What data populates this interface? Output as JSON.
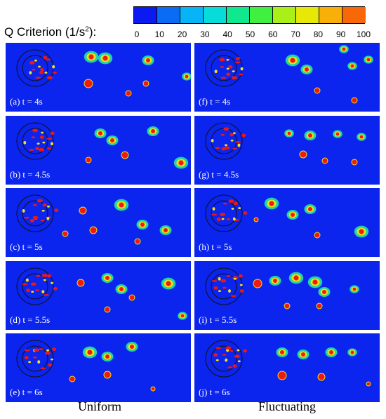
{
  "colorbar": {
    "title_prefix": "Q Criterion (1/s",
    "title_sup": "2",
    "title_suffix": "):",
    "ticks": [
      "0",
      "10",
      "20",
      "30",
      "40",
      "50",
      "60",
      "70",
      "80",
      "90",
      "100"
    ],
    "colors": [
      "#0a1af0",
      "#0a6cf5",
      "#08b4f8",
      "#06dcd8",
      "#10e890",
      "#40f040",
      "#a8f018",
      "#e8e808",
      "#f8b008",
      "#f86808"
    ]
  },
  "panels": [
    {
      "label": "(a) t = 4s"
    },
    {
      "label": "(f) t = 4s"
    },
    {
      "label": "(b) t = 4.5s"
    },
    {
      "label": "(g) t = 4.5s"
    },
    {
      "label": "(c) t = 5s"
    },
    {
      "label": "(h) t = 5s"
    },
    {
      "label": "(d) t = 5.5s"
    },
    {
      "label": "(i) t = 5.5s"
    },
    {
      "label": "(e) t = 6s"
    },
    {
      "label": "(j) t = 6s"
    }
  ],
  "columns": {
    "left": "Uniform",
    "right": "Fluctuating"
  }
}
